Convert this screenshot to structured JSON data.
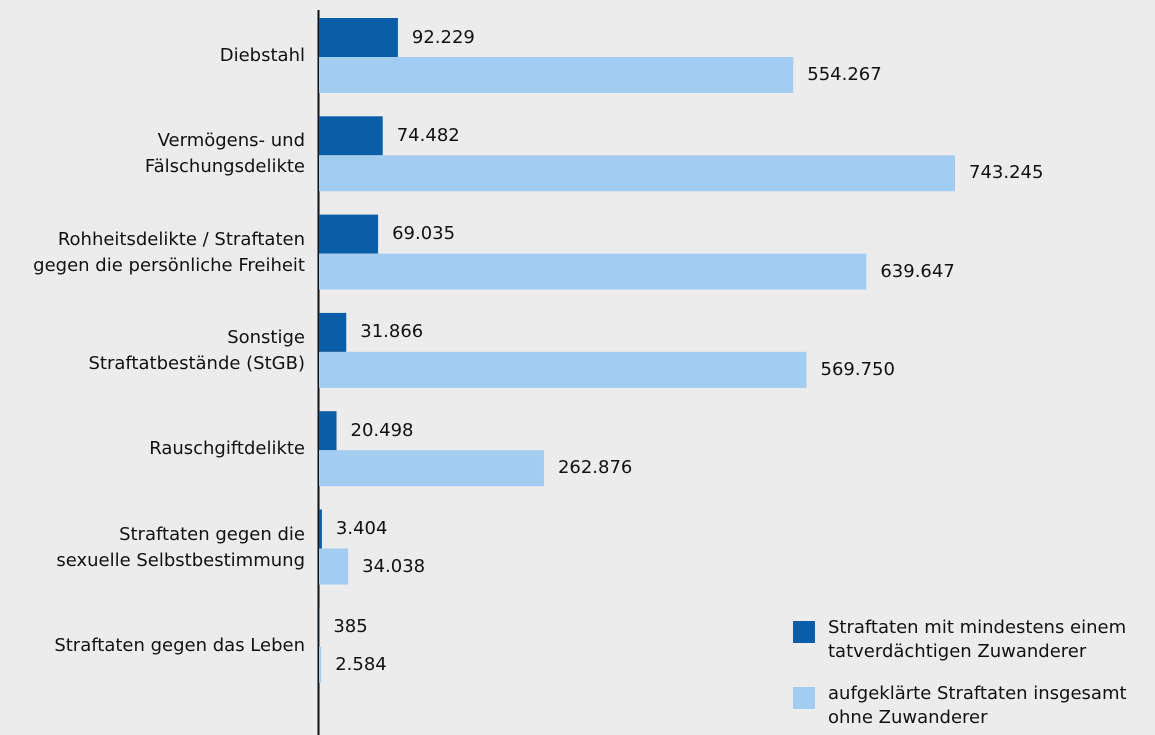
{
  "chart_data": {
    "type": "bar",
    "orientation": "horizontal",
    "categories": [
      "Diebstahl",
      "Vermögens- und\nFälschungsdelikte",
      "Rohheitsdelikte / Straftaten\ngegen die persönliche Freiheit",
      "Sonstige\nStraftatbestände (StGB)",
      "Rauschgiftdelikte",
      "Straftaten gegen die\nsexuelle Selbstbestimmung",
      "Straftaten gegen das Leben"
    ],
    "series": [
      {
        "name": "Straftaten mit mindestens einem\ntatverdächtigen Zuwanderer",
        "color": "#0a5ea8",
        "values": [
          92229,
          74482,
          69035,
          31866,
          20498,
          3404,
          385
        ],
        "value_labels": [
          "92.229",
          "74.482",
          "69.035",
          "31.866",
          "20.498",
          "3.404",
          "385"
        ]
      },
      {
        "name": "aufgeklärte Straftaten insgesamt\nohne Zuwanderer",
        "color": "#a3cdf0",
        "values": [
          554267,
          743245,
          639647,
          569750,
          262876,
          34038,
          2584
        ],
        "value_labels": [
          "554.267",
          "743.245",
          "639.647",
          "569.750",
          "262.876",
          "34.038",
          "2.584"
        ]
      }
    ],
    "legend": "lower right"
  }
}
